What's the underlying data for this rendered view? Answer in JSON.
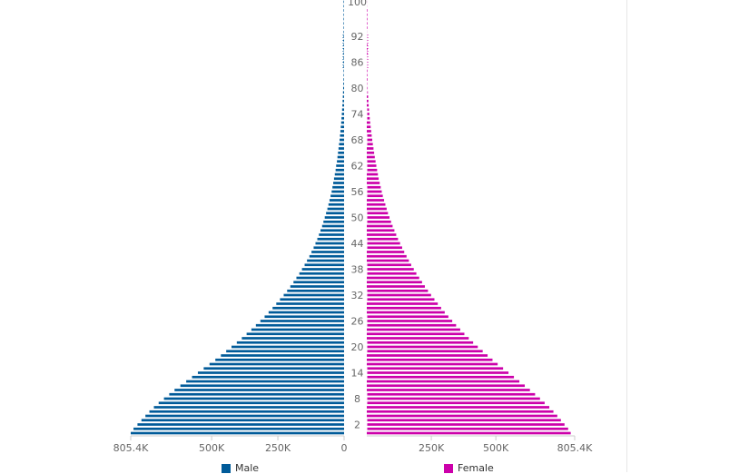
{
  "chart_data": {
    "type": "bar",
    "orientation": "horizontal",
    "subtype": "population-pyramid",
    "age_tick_labels": [
      "100",
      "92",
      "86",
      "80",
      "74",
      "68",
      "62",
      "56",
      "50",
      "44",
      "38",
      "32",
      "26",
      "20",
      "14",
      "8",
      "2"
    ],
    "male_axis_tick_labels": [
      "805.4K",
      "500K",
      "250K",
      "0"
    ],
    "female_axis_tick_labels": [
      "250K",
      "500K",
      "805.4K"
    ],
    "x_max": 805400,
    "legend_position": "bottom",
    "grid": false,
    "categories": [
      "0",
      "1",
      "2",
      "3",
      "4",
      "5",
      "6",
      "7",
      "8",
      "9",
      "10",
      "11",
      "12",
      "13",
      "14",
      "15",
      "16",
      "17",
      "18",
      "19",
      "20",
      "21",
      "22",
      "23",
      "24",
      "25",
      "26",
      "27",
      "28",
      "29",
      "30",
      "31",
      "32",
      "33",
      "34",
      "35",
      "36",
      "37",
      "38",
      "39",
      "40",
      "41",
      "42",
      "43",
      "44",
      "45",
      "46",
      "47",
      "48",
      "49",
      "50",
      "51",
      "52",
      "53",
      "54",
      "55",
      "56",
      "57",
      "58",
      "59",
      "60",
      "61",
      "62",
      "63",
      "64",
      "65",
      "66",
      "67",
      "68",
      "69",
      "70",
      "71",
      "72",
      "73",
      "74",
      "75",
      "76",
      "77",
      "78",
      "79",
      "80",
      "81",
      "82",
      "83",
      "84",
      "85",
      "86",
      "87",
      "88",
      "89",
      "90",
      "91",
      "92",
      "93",
      "94",
      "95",
      "96",
      "97",
      "98",
      "99",
      "100"
    ],
    "series": [
      {
        "name": "Male",
        "color": "#005b99",
        "values": [
          805400,
          795000,
          780000,
          765000,
          750000,
          735000,
          718000,
          700000,
          680000,
          660000,
          640000,
          618000,
          596000,
          574000,
          552000,
          530000,
          508000,
          486000,
          465000,
          445000,
          425000,
          405000,
          386000,
          368000,
          350000,
          333000,
          316000,
          300000,
          285000,
          270000,
          256000,
          242000,
          228000,
          215000,
          203000,
          191000,
          180000,
          169000,
          159000,
          149000,
          140000,
          131000,
          123000,
          115000,
          108000,
          101000,
          95000,
          89000,
          83000,
          78000,
          73000,
          68000,
          63000,
          59000,
          55000,
          51000,
          47000,
          44000,
          41000,
          38000,
          35000,
          32000,
          30000,
          27000,
          25000,
          23000,
          21000,
          19000,
          17000,
          15500,
          14000,
          12500,
          11000,
          9800,
          8600,
          7500,
          6500,
          5600,
          4800,
          4100,
          3500,
          2900,
          2400,
          2000,
          1650,
          1350,
          1100,
          880,
          700,
          550,
          430,
          330,
          250,
          185,
          135,
          95,
          65,
          43,
          28,
          17,
          10
        ]
      },
      {
        "name": "Female",
        "color": "#cc00aa",
        "values": [
          790000,
          780000,
          766000,
          752000,
          738000,
          723000,
          707000,
          689000,
          671000,
          652000,
          632000,
          612000,
          591000,
          570000,
          549000,
          528000,
          507000,
          487000,
          468000,
          449000,
          430000,
          412000,
          395000,
          378000,
          362000,
          346000,
          331000,
          316000,
          302000,
          288000,
          275000,
          262000,
          249000,
          237000,
          225000,
          214000,
          203000,
          192000,
          182000,
          172000,
          163000,
          154000,
          145000,
          137000,
          129000,
          121000,
          114000,
          107000,
          100000,
          94000,
          88000,
          82000,
          77000,
          72000,
          67000,
          62000,
          58000,
          54000,
          50000,
          46000,
          43000,
          40000,
          37000,
          34000,
          31000,
          28500,
          26000,
          23500,
          21200,
          19000,
          17000,
          15000,
          13200,
          11500,
          10000,
          8600,
          7300,
          6200,
          5200,
          4300,
          3600,
          3000,
          2450,
          2000,
          1620,
          1300,
          1040,
          820,
          640,
          500,
          385,
          295,
          225,
          170,
          125,
          90,
          63,
          43,
          29,
          19,
          12
        ]
      }
    ]
  }
}
